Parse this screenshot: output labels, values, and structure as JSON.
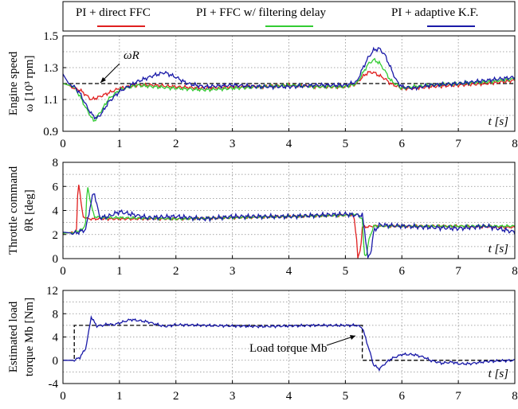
{
  "legend": [
    {
      "label": "PI + direct FFC",
      "color": "#e02020"
    },
    {
      "label": "PI + FFC w/ filtering delay",
      "color": "#33cc33"
    },
    {
      "label": "PI + adaptive K.F.",
      "color": "#1a1aa8"
    }
  ],
  "colors": {
    "reference": "#000000",
    "grid": "#8c8c8c",
    "frame": "#000000"
  },
  "chart_data": [
    {
      "type": "line",
      "ylabel_line1": "Engine speed",
      "ylabel_line2": "ω [10³ rpm]",
      "xlabel": "t [s]",
      "annotation": "ωR",
      "xlim": [
        0,
        8
      ],
      "ylim": [
        0.9,
        1.5
      ],
      "xticks": [
        "0",
        "1",
        "2",
        "3",
        "4",
        "5",
        "6",
        "7",
        "8"
      ],
      "yticks": [
        "0.9",
        "1.1",
        "1.3",
        "1.5"
      ],
      "ytick_values": [
        0.9,
        1.1,
        1.3,
        1.5
      ],
      "grid": true,
      "reference": {
        "name": "ωR",
        "x": [
          0,
          8
        ],
        "y": [
          1.2,
          1.2
        ]
      },
      "series": [
        {
          "name": "PI + direct FFC",
          "x": [
            0,
            0.1,
            0.2,
            0.3,
            0.4,
            0.5,
            0.6,
            0.8,
            1.0,
            1.3,
            1.6,
            2.0,
            2.5,
            3.0,
            3.5,
            4.0,
            4.5,
            5.0,
            5.2,
            5.3,
            5.4,
            5.5,
            5.6,
            5.7,
            5.8,
            6.0,
            6.2,
            6.5,
            7.0,
            7.5,
            8.0
          ],
          "y": [
            1.2,
            1.19,
            1.17,
            1.16,
            1.13,
            1.1,
            1.11,
            1.14,
            1.17,
            1.19,
            1.19,
            1.18,
            1.17,
            1.18,
            1.18,
            1.19,
            1.18,
            1.18,
            1.2,
            1.24,
            1.27,
            1.27,
            1.25,
            1.23,
            1.2,
            1.17,
            1.17,
            1.18,
            1.19,
            1.2,
            1.22
          ]
        },
        {
          "name": "PI + FFC w/ filtering delay",
          "x": [
            0,
            0.1,
            0.2,
            0.3,
            0.4,
            0.5,
            0.55,
            0.6,
            0.7,
            0.8,
            1.0,
            1.3,
            1.6,
            2.0,
            2.5,
            3.0,
            3.5,
            4.0,
            4.5,
            5.0,
            5.2,
            5.3,
            5.4,
            5.5,
            5.6,
            5.7,
            5.8,
            6.0,
            6.2,
            6.5,
            7.0,
            7.5,
            8.0
          ],
          "y": [
            1.2,
            1.19,
            1.18,
            1.12,
            1.05,
            0.99,
            0.96,
            0.99,
            1.04,
            1.1,
            1.16,
            1.19,
            1.18,
            1.17,
            1.16,
            1.17,
            1.18,
            1.19,
            1.18,
            1.18,
            1.2,
            1.26,
            1.32,
            1.35,
            1.33,
            1.28,
            1.22,
            1.17,
            1.18,
            1.19,
            1.2,
            1.21,
            1.23
          ]
        },
        {
          "name": "PI + adaptive K.F.",
          "x": [
            0,
            0.1,
            0.2,
            0.3,
            0.4,
            0.5,
            0.6,
            0.7,
            0.8,
            1.0,
            1.3,
            1.6,
            1.8,
            2.0,
            2.2,
            2.5,
            3.0,
            3.5,
            4.0,
            4.5,
            5.0,
            5.2,
            5.3,
            5.4,
            5.5,
            5.6,
            5.7,
            5.8,
            5.9,
            6.0,
            6.2,
            6.5,
            7.0,
            7.5,
            8.0
          ],
          "y": [
            1.26,
            1.2,
            1.18,
            1.14,
            1.07,
            1.01,
            0.98,
            1.02,
            1.08,
            1.15,
            1.21,
            1.25,
            1.27,
            1.24,
            1.2,
            1.18,
            1.19,
            1.18,
            1.18,
            1.19,
            1.19,
            1.21,
            1.29,
            1.36,
            1.41,
            1.42,
            1.38,
            1.3,
            1.22,
            1.18,
            1.17,
            1.19,
            1.2,
            1.22,
            1.24
          ]
        }
      ]
    },
    {
      "type": "line",
      "ylabel_line1": "Throttle command",
      "ylabel_line2": "θR [deg]",
      "xlabel": "t [s]",
      "xlim": [
        0,
        8
      ],
      "ylim": [
        0,
        8
      ],
      "xticks": [
        "0",
        "1",
        "2",
        "3",
        "4",
        "5",
        "6",
        "7",
        "8"
      ],
      "yticks": [
        "0",
        "2",
        "4",
        "6",
        "8"
      ],
      "ytick_values": [
        0,
        2,
        4,
        6,
        8
      ],
      "grid": true,
      "series": [
        {
          "name": "PI + direct FFC",
          "x": [
            0,
            0.2,
            0.24,
            0.27,
            0.3,
            0.35,
            0.45,
            0.6,
            1.0,
            2.0,
            3.0,
            4.0,
            5.0,
            5.1,
            5.15,
            5.2,
            5.22,
            5.27,
            5.3,
            5.5,
            6.0,
            7.0,
            8.0
          ],
          "y": [
            2.1,
            2.2,
            2.4,
            6.6,
            5.5,
            3.5,
            3.3,
            3.3,
            3.3,
            3.3,
            3.4,
            3.5,
            3.6,
            3.6,
            3.6,
            1.6,
            0,
            0.8,
            2.6,
            2.7,
            2.7,
            2.7,
            2.6
          ]
        },
        {
          "name": "PI + FFC w/ filtering delay",
          "x": [
            0,
            0.2,
            0.35,
            0.4,
            0.43,
            0.5,
            0.55,
            0.7,
            1.0,
            2.0,
            3.0,
            4.0,
            5.0,
            5.2,
            5.3,
            5.33,
            5.37,
            5.42,
            5.5,
            6.0,
            7.0,
            8.0
          ],
          "y": [
            2.1,
            2.2,
            2.4,
            3.0,
            6.1,
            4.5,
            3.5,
            3.4,
            3.4,
            3.3,
            3.4,
            3.5,
            3.6,
            3.7,
            3.3,
            0.4,
            0.2,
            1.6,
            2.7,
            2.7,
            2.7,
            2.7
          ]
        },
        {
          "name": "PI + adaptive K.F.",
          "x": [
            0,
            0.2,
            0.4,
            0.5,
            0.55,
            0.65,
            0.8,
            1.0,
            1.5,
            2.0,
            2.5,
            3.0,
            4.0,
            5.0,
            5.2,
            5.3,
            5.35,
            5.4,
            5.45,
            5.5,
            5.6,
            6.0,
            6.5,
            7.0,
            7.5,
            8.0
          ],
          "y": [
            2.2,
            2.1,
            2.4,
            4.7,
            5.6,
            3.4,
            3.5,
            3.9,
            3.4,
            3.5,
            3.3,
            3.5,
            3.5,
            3.7,
            3.6,
            3.6,
            2.0,
            0,
            0.5,
            2.2,
            2.8,
            2.7,
            2.6,
            2.5,
            2.7,
            2.2
          ]
        }
      ]
    },
    {
      "type": "line",
      "ylabel_line1": "Estimated load",
      "ylabel_line2": "torque Mb [Nm]",
      "xlabel": "t [s]",
      "annotation": "Load torque Mb",
      "xlim": [
        0,
        8
      ],
      "ylim": [
        -4,
        12
      ],
      "xticks": [
        "0",
        "1",
        "2",
        "3",
        "4",
        "5",
        "6",
        "7",
        "8"
      ],
      "yticks": [
        "-4",
        "0",
        "4",
        "8",
        "12"
      ],
      "ytick_values": [
        -4,
        0,
        4,
        8,
        12
      ],
      "grid": true,
      "reference": {
        "name": "Load torque Mb",
        "x": [
          0,
          0.2,
          0.2,
          5.3,
          5.3,
          8.0
        ],
        "y": [
          0,
          0,
          6,
          6,
          0,
          0
        ]
      },
      "series": [
        {
          "name": "PI + adaptive K.F.",
          "x": [
            0,
            0.2,
            0.3,
            0.4,
            0.45,
            0.5,
            0.55,
            0.6,
            0.7,
            0.8,
            0.9,
            1.0,
            1.2,
            1.5,
            1.8,
            2.0,
            2.5,
            3.0,
            3.5,
            4.0,
            4.5,
            5.0,
            5.2,
            5.3,
            5.4,
            5.5,
            5.6,
            5.7,
            5.8,
            6.0,
            6.2,
            6.4,
            6.5,
            6.7,
            6.9,
            7.0,
            7.2,
            7.5,
            8.0
          ],
          "y": [
            0,
            0,
            0.5,
            2.0,
            4.5,
            7.5,
            6.6,
            5.9,
            6.0,
            6.2,
            6.1,
            6.4,
            7.0,
            6.6,
            5.8,
            6.1,
            6.0,
            5.9,
            5.8,
            5.9,
            6.0,
            6.0,
            6.0,
            5.6,
            2.5,
            -0.8,
            -1.5,
            -0.6,
            0.2,
            1.0,
            1.0,
            0.5,
            0.0,
            -0.5,
            -0.3,
            -0.6,
            -0.6,
            -0.2,
            0.0
          ]
        }
      ]
    }
  ]
}
